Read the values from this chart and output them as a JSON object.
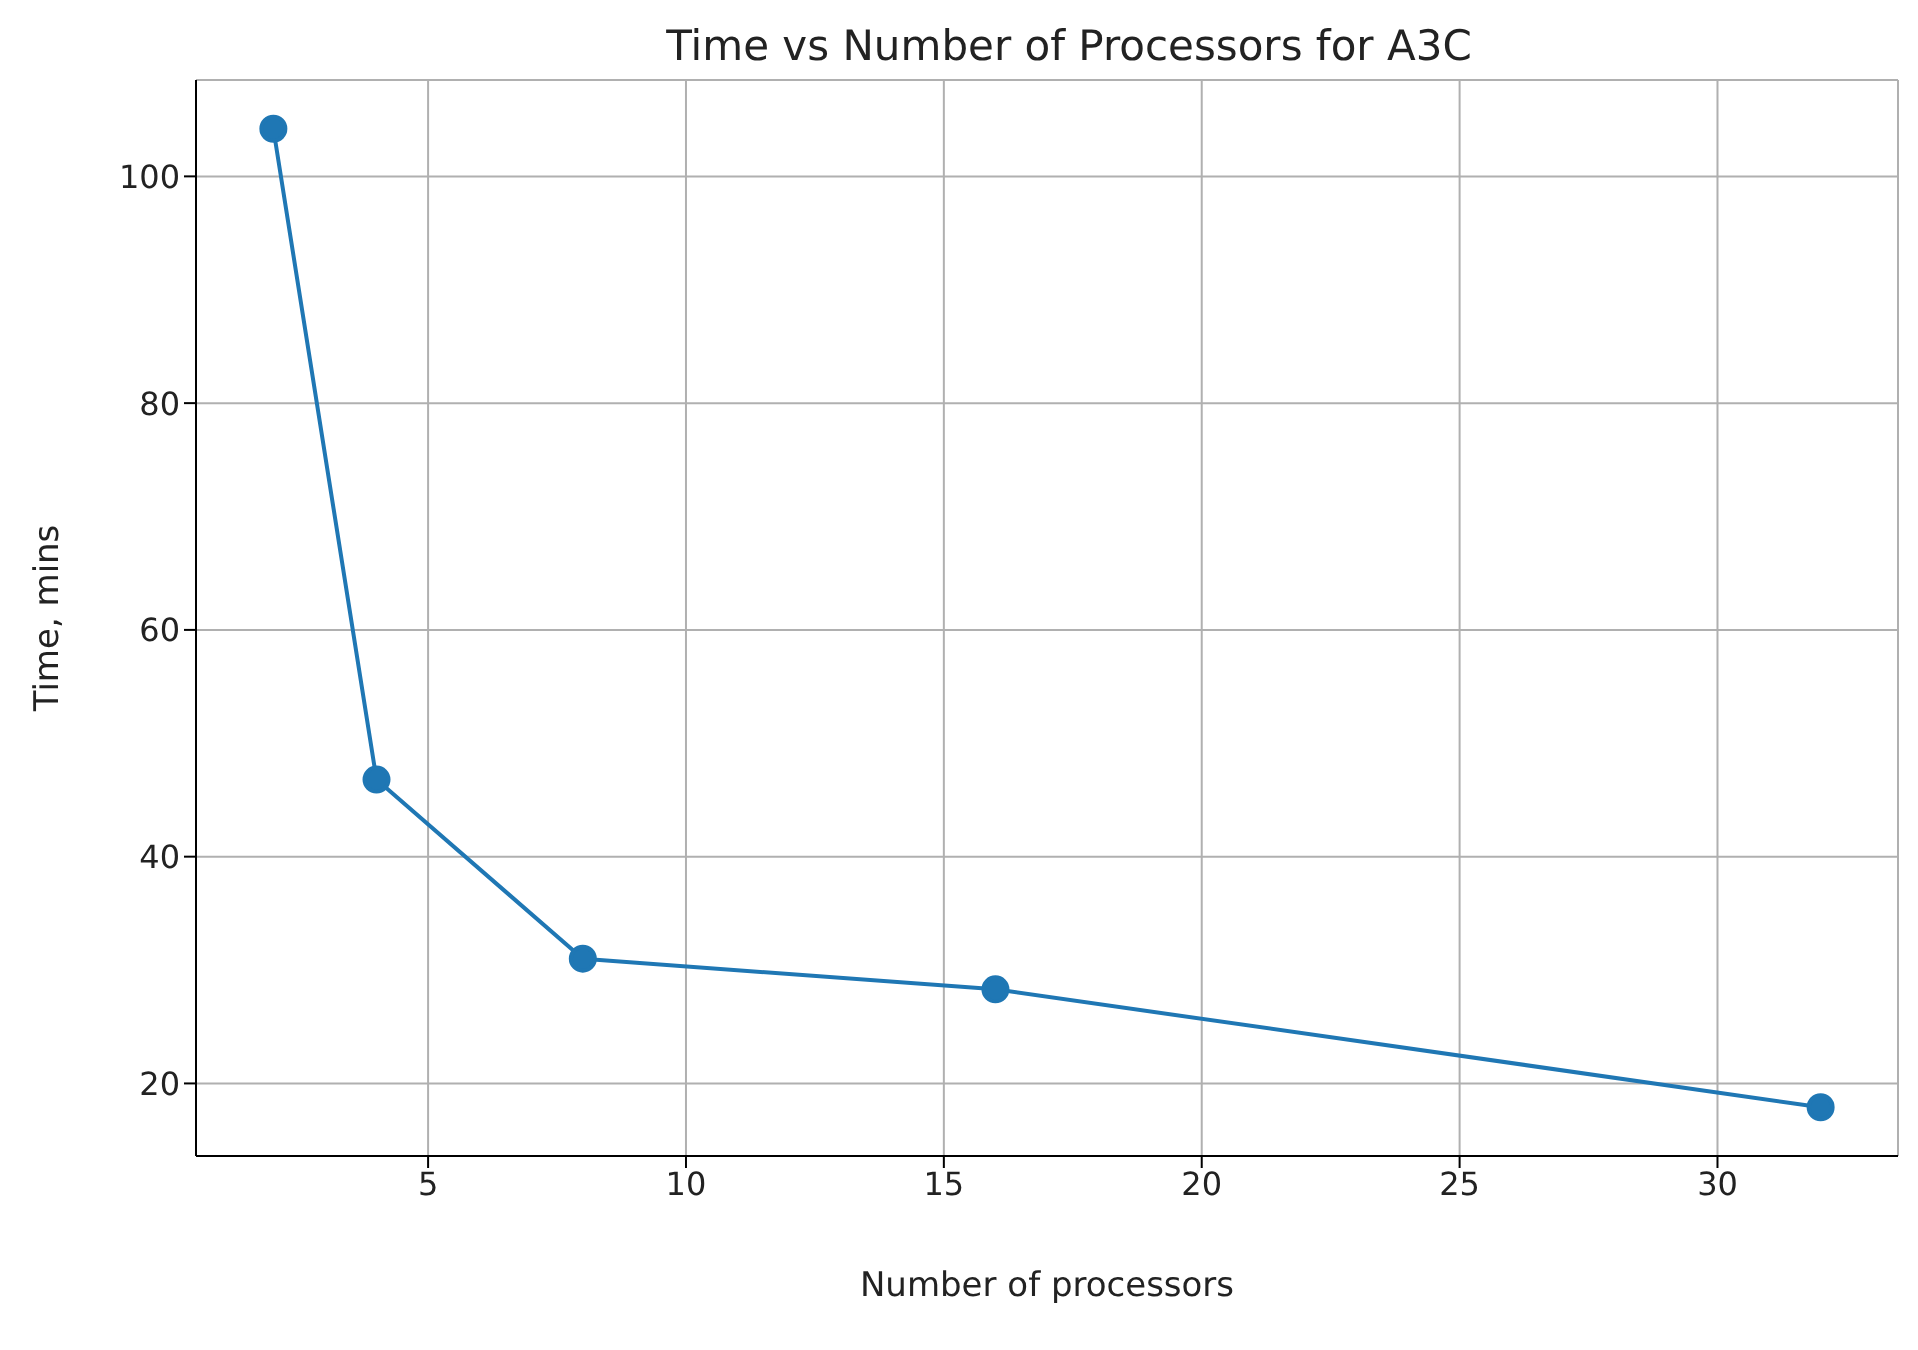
{
  "chart_data": {
    "type": "line",
    "title": "Time vs Number of Processors for A3C",
    "xlabel": "Number of processors",
    "ylabel": "Time, mins",
    "x": [
      2,
      4,
      8,
      16,
      32
    ],
    "series": [
      {
        "color": "#1f77b4",
        "values": [
          104.2,
          46.8,
          31,
          28.3,
          17.9
        ]
      }
    ],
    "xlim": [
      0.5,
      33.5
    ],
    "xticks": [
      5,
      10,
      15,
      20,
      25,
      30
    ],
    "ylim": [
      13.6,
      108.5
    ],
    "yticks": [
      20,
      40,
      60,
      80,
      100
    ],
    "grid": true,
    "marker": "circle",
    "line_style": "solid"
  }
}
